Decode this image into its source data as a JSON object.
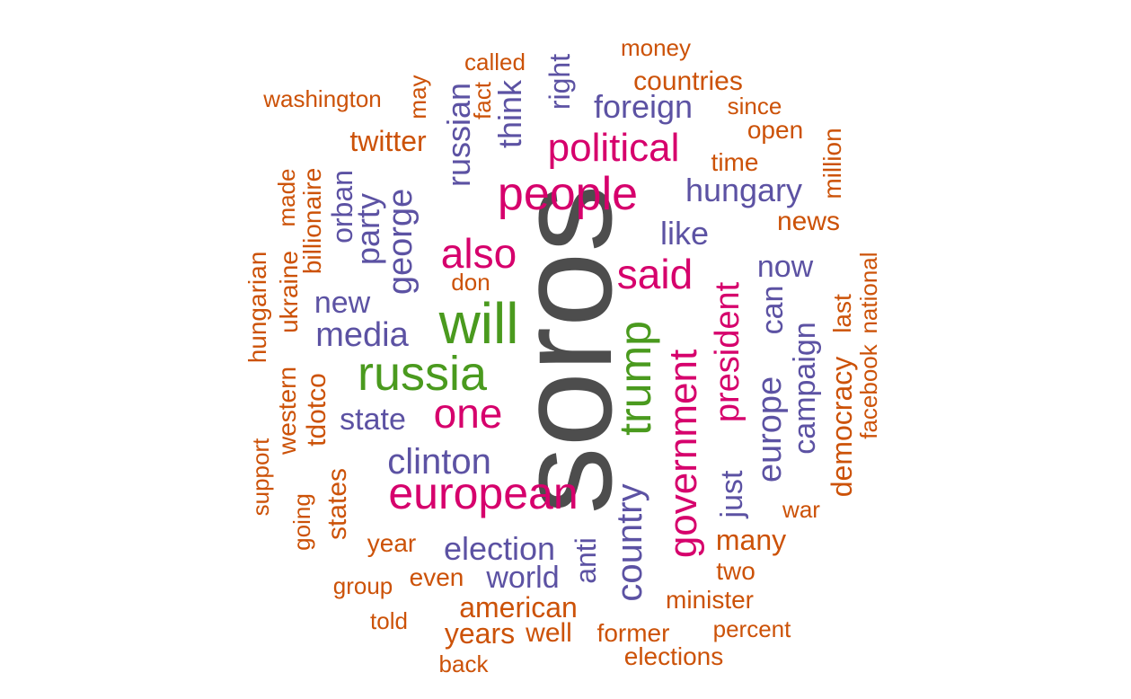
{
  "palette": {
    "gray": "#4d4d4d",
    "green": "#4a9a1e",
    "magenta": "#d6006c",
    "purple": "#5c52a3",
    "orange": "#cc5208"
  },
  "words": [
    {
      "text": "soros",
      "color": "gray",
      "vertical": true
    },
    {
      "text": "will",
      "color": "green",
      "vertical": false
    },
    {
      "text": "trump",
      "color": "green",
      "vertical": true
    },
    {
      "text": "russia",
      "color": "green",
      "vertical": false
    },
    {
      "text": "people",
      "color": "magenta",
      "vertical": false
    },
    {
      "text": "political",
      "color": "magenta",
      "vertical": false
    },
    {
      "text": "said",
      "color": "magenta",
      "vertical": false
    },
    {
      "text": "also",
      "color": "magenta",
      "vertical": false
    },
    {
      "text": "one",
      "color": "magenta",
      "vertical": false
    },
    {
      "text": "european",
      "color": "magenta",
      "vertical": false
    },
    {
      "text": "government",
      "color": "magenta",
      "vertical": true
    },
    {
      "text": "president",
      "color": "magenta",
      "vertical": true
    },
    {
      "text": "george",
      "color": "purple",
      "vertical": true
    },
    {
      "text": "russian",
      "color": "purple",
      "vertical": true
    },
    {
      "text": "hungary",
      "color": "purple",
      "vertical": false
    },
    {
      "text": "foreign",
      "color": "purple",
      "vertical": false
    },
    {
      "text": "like",
      "color": "purple",
      "vertical": false
    },
    {
      "text": "now",
      "color": "purple",
      "vertical": false
    },
    {
      "text": "media",
      "color": "purple",
      "vertical": false
    },
    {
      "text": "new",
      "color": "purple",
      "vertical": false
    },
    {
      "text": "state",
      "color": "purple",
      "vertical": false
    },
    {
      "text": "clinton",
      "color": "purple",
      "vertical": false
    },
    {
      "text": "election",
      "color": "purple",
      "vertical": false
    },
    {
      "text": "world",
      "color": "purple",
      "vertical": false
    },
    {
      "text": "country",
      "color": "purple",
      "vertical": true
    },
    {
      "text": "europe",
      "color": "purple",
      "vertical": true
    },
    {
      "text": "can",
      "color": "purple",
      "vertical": true
    },
    {
      "text": "campaign",
      "color": "purple",
      "vertical": true
    },
    {
      "text": "party",
      "color": "purple",
      "vertical": true
    },
    {
      "text": "orban",
      "color": "purple",
      "vertical": true
    },
    {
      "text": "think",
      "color": "purple",
      "vertical": true
    },
    {
      "text": "right",
      "color": "purple",
      "vertical": true
    },
    {
      "text": "just",
      "color": "purple",
      "vertical": true
    },
    {
      "text": "anti",
      "color": "purple",
      "vertical": true
    },
    {
      "text": "money",
      "color": "orange",
      "vertical": false
    },
    {
      "text": "called",
      "color": "orange",
      "vertical": false
    },
    {
      "text": "countries",
      "color": "orange",
      "vertical": false
    },
    {
      "text": "washington",
      "color": "orange",
      "vertical": false
    },
    {
      "text": "since",
      "color": "orange",
      "vertical": false
    },
    {
      "text": "open",
      "color": "orange",
      "vertical": false
    },
    {
      "text": "twitter",
      "color": "orange",
      "vertical": false
    },
    {
      "text": "time",
      "color": "orange",
      "vertical": false
    },
    {
      "text": "news",
      "color": "orange",
      "vertical": false
    },
    {
      "text": "don",
      "color": "orange",
      "vertical": false
    },
    {
      "text": "war",
      "color": "orange",
      "vertical": false
    },
    {
      "text": "many",
      "color": "orange",
      "vertical": false
    },
    {
      "text": "year",
      "color": "orange",
      "vertical": false
    },
    {
      "text": "two",
      "color": "orange",
      "vertical": false
    },
    {
      "text": "group",
      "color": "orange",
      "vertical": false
    },
    {
      "text": "even",
      "color": "orange",
      "vertical": false
    },
    {
      "text": "minister",
      "color": "orange",
      "vertical": false
    },
    {
      "text": "american",
      "color": "orange",
      "vertical": false
    },
    {
      "text": "told",
      "color": "orange",
      "vertical": false
    },
    {
      "text": "percent",
      "color": "orange",
      "vertical": false
    },
    {
      "text": "years",
      "color": "orange",
      "vertical": false
    },
    {
      "text": "well",
      "color": "orange",
      "vertical": false
    },
    {
      "text": "former",
      "color": "orange",
      "vertical": false
    },
    {
      "text": "elections",
      "color": "orange",
      "vertical": false
    },
    {
      "text": "back",
      "color": "orange",
      "vertical": false
    },
    {
      "text": "may",
      "color": "orange",
      "vertical": true
    },
    {
      "text": "fact",
      "color": "orange",
      "vertical": true
    },
    {
      "text": "million",
      "color": "orange",
      "vertical": true
    },
    {
      "text": "made",
      "color": "orange",
      "vertical": true
    },
    {
      "text": "billionaire",
      "color": "orange",
      "vertical": true
    },
    {
      "text": "ukraine",
      "color": "orange",
      "vertical": true
    },
    {
      "text": "hungarian",
      "color": "orange",
      "vertical": true
    },
    {
      "text": "national",
      "color": "orange",
      "vertical": true
    },
    {
      "text": "last",
      "color": "orange",
      "vertical": true
    },
    {
      "text": "facebook",
      "color": "orange",
      "vertical": true
    },
    {
      "text": "democracy",
      "color": "orange",
      "vertical": true
    },
    {
      "text": "tdotco",
      "color": "orange",
      "vertical": true
    },
    {
      "text": "western",
      "color": "orange",
      "vertical": true
    },
    {
      "text": "support",
      "color": "orange",
      "vertical": true
    },
    {
      "text": "going",
      "color": "orange",
      "vertical": true
    },
    {
      "text": "states",
      "color": "orange",
      "vertical": true
    }
  ]
}
